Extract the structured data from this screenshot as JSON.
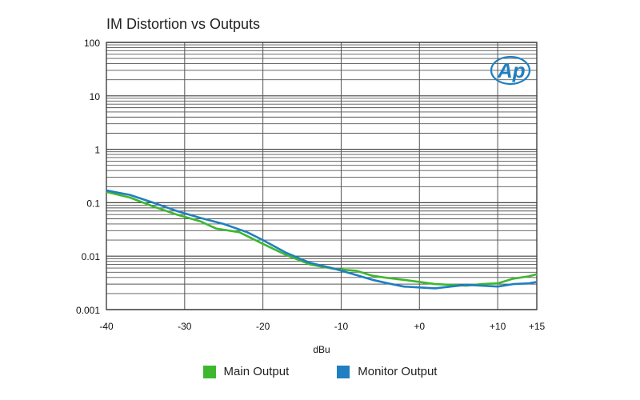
{
  "chart_data": {
    "type": "line",
    "title": "IM Distortion vs Outputs",
    "xlabel": "dBu",
    "ylabel": "",
    "xlim": [
      -40,
      15
    ],
    "ylim": [
      0.001,
      100
    ],
    "yscale": "log",
    "grid": true,
    "x_ticks": [
      {
        "value": -40,
        "label": "-40"
      },
      {
        "value": -30,
        "label": "-30"
      },
      {
        "value": -20,
        "label": "-20"
      },
      {
        "value": -10,
        "label": "-10"
      },
      {
        "value": 0,
        "label": "+0"
      },
      {
        "value": 10,
        "label": "+10"
      },
      {
        "value": 15,
        "label": "+15"
      }
    ],
    "y_ticks": [
      {
        "value": 100,
        "label": "100"
      },
      {
        "value": 10,
        "label": "10"
      },
      {
        "value": 1,
        "label": "1"
      },
      {
        "value": 0.1,
        "label": "0.1"
      },
      {
        "value": 0.01,
        "label": "0.01"
      },
      {
        "value": 0.001,
        "label": "0.001"
      }
    ],
    "legend_position": "bottom",
    "series": [
      {
        "name": "Main Output",
        "color": "#3db82e",
        "x": [
          -40,
          -37,
          -34,
          -31,
          -28,
          -26,
          -23,
          -20,
          -17,
          -14,
          -11,
          -8,
          -6,
          -4,
          -2,
          0,
          2,
          4,
          6,
          8,
          10,
          12,
          14,
          15
        ],
        "y": [
          0.16,
          0.125,
          0.085,
          0.06,
          0.045,
          0.033,
          0.028,
          0.017,
          0.0105,
          0.007,
          0.0058,
          0.0053,
          0.0043,
          0.0039,
          0.0036,
          0.0033,
          0.003,
          0.0029,
          0.0028,
          0.003,
          0.0031,
          0.0038,
          0.0042,
          0.0046
        ]
      },
      {
        "name": "Monitor Output",
        "color": "#1f7fc0",
        "x": [
          -40,
          -37,
          -34,
          -31,
          -28,
          -25,
          -22,
          -20,
          -17,
          -14,
          -11,
          -8,
          -6,
          -4,
          -2,
          0,
          2,
          4,
          6,
          8,
          10,
          12,
          14,
          15
        ],
        "y": [
          0.17,
          0.14,
          0.1,
          0.07,
          0.052,
          0.04,
          0.028,
          0.02,
          0.0115,
          0.0075,
          0.0059,
          0.0044,
          0.0036,
          0.0031,
          0.0027,
          0.0026,
          0.0025,
          0.0027,
          0.0029,
          0.0028,
          0.0027,
          0.003,
          0.0031,
          0.0033
        ]
      }
    ]
  },
  "logo": {
    "text": "Ap",
    "color": "#1f7fc0"
  }
}
